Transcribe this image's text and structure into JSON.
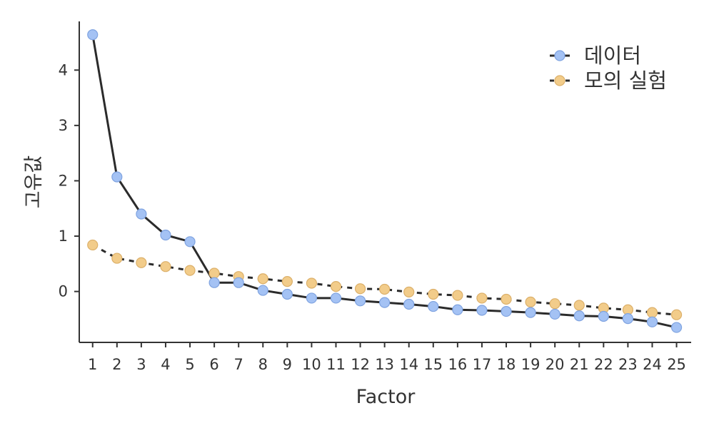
{
  "chart_data": {
    "type": "line",
    "title": "",
    "xlabel": "Factor",
    "ylabel": "고유값",
    "x": [
      1,
      2,
      3,
      4,
      5,
      6,
      7,
      8,
      9,
      10,
      11,
      12,
      13,
      14,
      15,
      16,
      17,
      18,
      19,
      20,
      21,
      22,
      23,
      24,
      25
    ],
    "xticks": [
      1,
      2,
      3,
      4,
      5,
      6,
      7,
      8,
      9,
      10,
      11,
      12,
      13,
      14,
      15,
      16,
      17,
      18,
      19,
      20,
      21,
      22,
      23,
      24,
      25
    ],
    "yticks": [
      0,
      1,
      2,
      3,
      4
    ],
    "xlim": [
      0.45,
      25.6
    ],
    "ylim": [
      -0.92,
      4.88
    ],
    "grid": false,
    "legend_position": "top-right",
    "series": [
      {
        "name": "데이터",
        "line_style": "solid",
        "color": "#a4c2f4",
        "edge_color": "#7fa3e0",
        "values": [
          4.64,
          2.07,
          1.4,
          1.02,
          0.9,
          0.16,
          0.16,
          0.02,
          -0.05,
          -0.12,
          -0.12,
          -0.17,
          -0.2,
          -0.23,
          -0.27,
          -0.33,
          -0.34,
          -0.36,
          -0.38,
          -0.41,
          -0.44,
          -0.45,
          -0.49,
          -0.55,
          -0.65
        ]
      },
      {
        "name": "모의 실험",
        "line_style": "dashed",
        "color": "#f2cc8a",
        "edge_color": "#dcb06a",
        "values": [
          0.84,
          0.6,
          0.52,
          0.45,
          0.38,
          0.33,
          0.27,
          0.23,
          0.18,
          0.15,
          0.09,
          0.05,
          0.04,
          -0.01,
          -0.05,
          -0.07,
          -0.12,
          -0.14,
          -0.19,
          -0.22,
          -0.25,
          -0.3,
          -0.33,
          -0.38,
          -0.42
        ]
      }
    ]
  }
}
